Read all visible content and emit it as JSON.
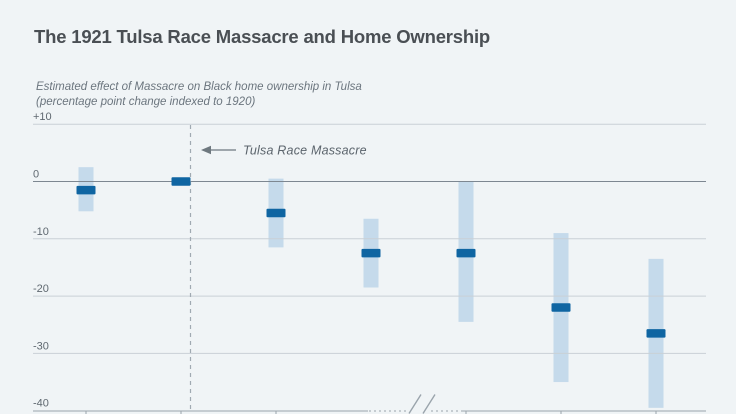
{
  "page": {
    "title": "The 1921 Tulsa Race Massacre and Home Ownership",
    "subtitle_line1": "Estimated effect of Massacre on Black home ownership in Tulsa",
    "subtitle_line2": "(percentage point change indexed to 1920)"
  },
  "colors": {
    "background": "#f0f4f6",
    "title_text": "#4a4f54",
    "subtitle_text": "#6b757e",
    "axis_label_text": "#5f6870",
    "gridline": "#c9d0d6",
    "zero_line": "#7d8791",
    "axis_line": "#9aa4ac",
    "dashed_event_line": "#a0aab2",
    "ci_band": "#c5daeb",
    "point_estimate": "#0f65a2",
    "annotation_text": "#5b646c"
  },
  "chart_data": {
    "type": "scatter",
    "title": "The 1921 Tulsa Race Massacre and Home Ownership",
    "subtitle": "Estimated effect of Massacre on Black home ownership in Tulsa (percentage point change indexed to 1920)",
    "ylabel": "percentage point change indexed to 1920",
    "ylim": [
      -40,
      10
    ],
    "grid": "horizontal",
    "legend": null,
    "y_ticks": [
      {
        "value": 10,
        "label": "+10"
      },
      {
        "value": 0,
        "label": "0"
      },
      {
        "value": -10,
        "label": "-10"
      },
      {
        "value": -20,
        "label": "-20"
      },
      {
        "value": -30,
        "label": "-30"
      },
      {
        "value": -40,
        "label": "-40"
      }
    ],
    "x_tick_labels_visible": false,
    "x_ticks_at_points": [
      0,
      1,
      2,
      4,
      5,
      6
    ],
    "axis_break": {
      "between_points": [
        3,
        4
      ],
      "style": "double slash with dotted segments"
    },
    "annotation": {
      "text": "Tulsa Race Massacre",
      "marks": "dashed vertical line just right of the 1920 baseline point, arrow points left to it"
    },
    "baseline_point_index": 1,
    "points": [
      {
        "estimate": -1.5,
        "ci_high": 2.5,
        "ci_low": -5.2
      },
      {
        "estimate": 0,
        "ci_high": null,
        "ci_low": null
      },
      {
        "estimate": -5.5,
        "ci_high": 0.5,
        "ci_low": -11.5
      },
      {
        "estimate": -12.5,
        "ci_high": -6.5,
        "ci_low": -18.5
      },
      {
        "estimate": -12.5,
        "ci_high": 0,
        "ci_low": -24.5
      },
      {
        "estimate": -22,
        "ci_high": -9,
        "ci_low": -35
      },
      {
        "estimate": -26.5,
        "ci_high": -13.5,
        "ci_low": -39.5
      }
    ],
    "series_style": {
      "point_marker": "short horizontal dark-blue bar",
      "interval": "light-blue shaded vertical band"
    }
  }
}
